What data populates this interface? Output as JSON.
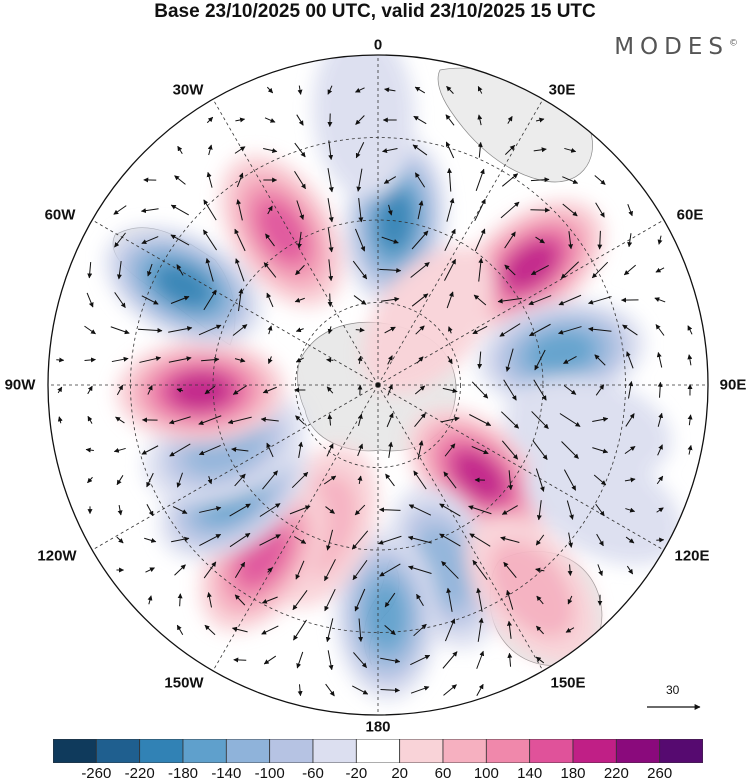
{
  "header": {
    "title": "Base 23/10/2025 00 UTC, valid 23/10/2025 15 UTC",
    "brand": "MODES"
  },
  "longitude_labels": [
    "0",
    "30E",
    "60E",
    "90E",
    "120E",
    "150E",
    "180",
    "150W",
    "120W",
    "90W",
    "60W",
    "30W"
  ],
  "reference_vector": {
    "label": "30"
  },
  "colorbar": {
    "labels": [
      "-260",
      "-220",
      "-180",
      "-140",
      "-100",
      "-60",
      "-20",
      "20",
      "60",
      "100",
      "140",
      "180",
      "220",
      "260"
    ],
    "colors": [
      "#0f3a5c",
      "#1f5f8f",
      "#3182b5",
      "#5fa0cc",
      "#8fb3da",
      "#b6c3e3",
      "#dcdff0",
      "#ffffff",
      "#f9d3d8",
      "#f6b0c0",
      "#f088ab",
      "#e0529a",
      "#c01f86",
      "#8a0a7c",
      "#560a70"
    ]
  },
  "map": {
    "anomaly_blobs": [
      {
        "lon": 6,
        "colat_deg": 40,
        "value": -180
      },
      {
        "lon": 52,
        "colat_deg": 47,
        "value": 200
      },
      {
        "lon": 80,
        "colat_deg": 45,
        "value": -170
      },
      {
        "lon": 132,
        "colat_deg": 33,
        "value": 210
      },
      {
        "lon": 160,
        "colat_deg": 47,
        "value": -110
      },
      {
        "lon": 178,
        "colat_deg": 56,
        "value": -150
      },
      {
        "lon": 143,
        "colat_deg": 62,
        "value": 70
      },
      {
        "lon": -158,
        "colat_deg": 37,
        "value": 60
      },
      {
        "lon": -146,
        "colat_deg": 50,
        "value": 170
      },
      {
        "lon": -127,
        "colat_deg": 44,
        "value": -140
      },
      {
        "lon": -112,
        "colat_deg": 40,
        "value": -110
      },
      {
        "lon": -92,
        "colat_deg": 43,
        "value": 180
      },
      {
        "lon": -63,
        "colat_deg": 53,
        "value": -190
      },
      {
        "lon": -32,
        "colat_deg": 44,
        "value": 150
      },
      {
        "lon": -3,
        "colat_deg": 66,
        "value": -30
      },
      {
        "lon": 38,
        "colat_deg": 20,
        "value": 50
      },
      {
        "lon": 102,
        "colat_deg": 52,
        "value": -40
      },
      {
        "lon": 118,
        "colat_deg": 62,
        "value": -20
      }
    ]
  }
}
